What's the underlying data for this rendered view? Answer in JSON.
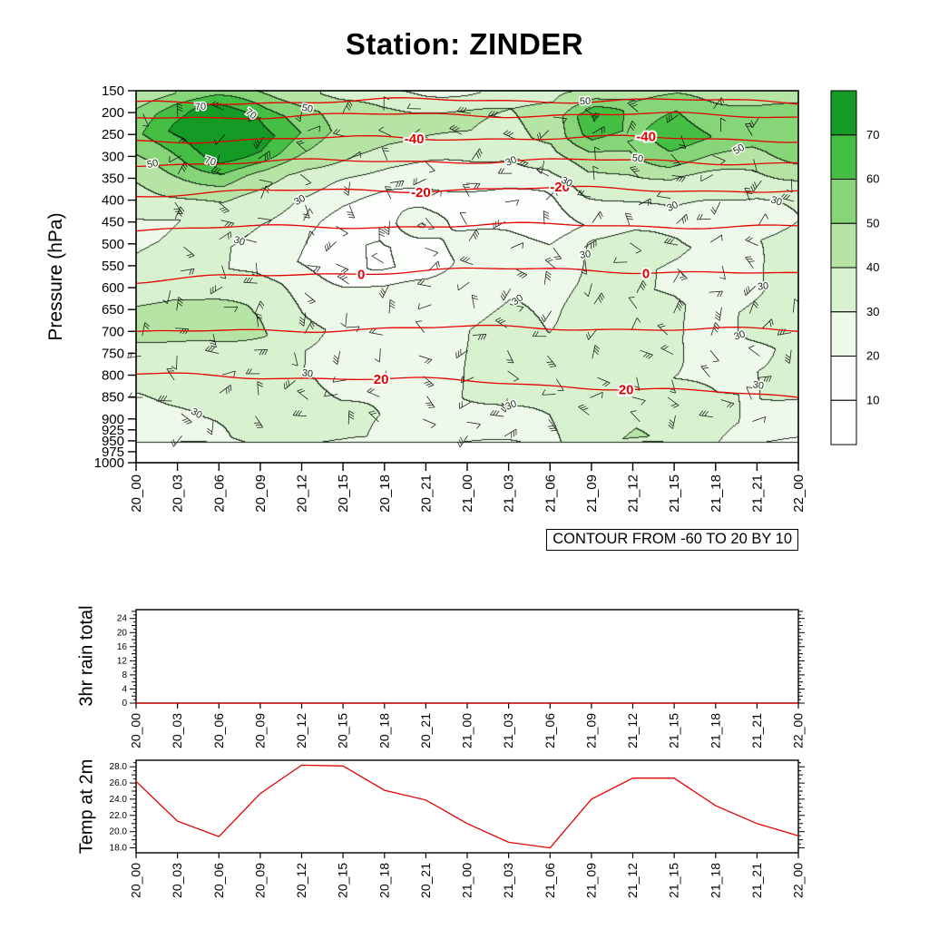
{
  "chart_data": [
    {
      "type": "heatmap",
      "title": "Station: ZINDER",
      "ylabel": "Pressure (hPa)",
      "xlabel": "",
      "ylim": [
        1000,
        150
      ],
      "y_ticks": [
        150,
        200,
        250,
        300,
        350,
        400,
        450,
        500,
        550,
        600,
        650,
        700,
        750,
        800,
        850,
        900,
        925,
        950,
        975,
        1000
      ],
      "x_ticklabels": [
        "20_00",
        "20_03",
        "20_06",
        "20_09",
        "20_12",
        "20_15",
        "20_18",
        "20_21",
        "21_00",
        "21_03",
        "21_06",
        "21_09",
        "21_12",
        "21_15",
        "21_18",
        "21_21",
        "22_00"
      ],
      "contour_note": "CONTOUR FROM -60 TO 20 BY 10",
      "colorbar_levels": [
        10,
        20,
        30,
        40,
        50,
        60,
        70
      ],
      "colorbar_colors": [
        "#ffffff",
        "#fcfefc",
        "#eef9ea",
        "#d8f1cf",
        "#b6e4a5",
        "#86d578",
        "#44bf44",
        "#149b26"
      ],
      "humidity_label_levels": [
        30,
        50,
        70
      ],
      "pressure_levels": [
        150,
        200,
        250,
        300,
        350,
        400,
        450,
        500,
        550,
        600,
        650,
        700,
        750,
        800,
        850,
        900,
        950,
        1000
      ],
      "humidity_values": [
        [
          44,
          50,
          52,
          48,
          45,
          36,
          29,
          28,
          29,
          32,
          36,
          45,
          44,
          46,
          45,
          44,
          45
        ],
        [
          52,
          66,
          75,
          70,
          55,
          45,
          42,
          42,
          41,
          40,
          44,
          72,
          55,
          60,
          56,
          54,
          52
        ],
        [
          56,
          72,
          82,
          76,
          60,
          46,
          42,
          40,
          40,
          38,
          42,
          66,
          58,
          66,
          60,
          56,
          58
        ],
        [
          50,
          60,
          73,
          68,
          50,
          40,
          35,
          33,
          32,
          30,
          36,
          50,
          48,
          56,
          50,
          48,
          52
        ],
        [
          42,
          48,
          56,
          46,
          35,
          28,
          26,
          25,
          24,
          24,
          28,
          38,
          36,
          41,
          38,
          36,
          40
        ],
        [
          35,
          38,
          43,
          36,
          28,
          22,
          18,
          16,
          15,
          15,
          18,
          28,
          30,
          32,
          30,
          28,
          32
        ],
        [
          28,
          30,
          33,
          30,
          24,
          16,
          13,
          32,
          14,
          10,
          13,
          21,
          26,
          28,
          25,
          25,
          30
        ],
        [
          29,
          31,
          31,
          28,
          22,
          12,
          9,
          13,
          26,
          29,
          21,
          31,
          33,
          31,
          28,
          30,
          33
        ],
        [
          31,
          33,
          31,
          28,
          20,
          12,
          9,
          12,
          23,
          26,
          21,
          33,
          31,
          29,
          26,
          29,
          36
        ],
        [
          33,
          36,
          36,
          33,
          28,
          22,
          20,
          22,
          26,
          29,
          26,
          33,
          31,
          29,
          26,
          29,
          33
        ],
        [
          41,
          46,
          43,
          39,
          30,
          25,
          22,
          25,
          28,
          31,
          28,
          36,
          33,
          31,
          28,
          31,
          33
        ],
        [
          43,
          46,
          45,
          41,
          32,
          28,
          25,
          28,
          30,
          33,
          30,
          34,
          33,
          31,
          28,
          31,
          33
        ],
        [
          36,
          37,
          36,
          33,
          30,
          28,
          26,
          28,
          30,
          32,
          30,
          33,
          32,
          31,
          28,
          29,
          31
        ],
        [
          32,
          33,
          32,
          31,
          30,
          29,
          28,
          29,
          30,
          31,
          30,
          32,
          31,
          30,
          29,
          30,
          31
        ],
        [
          30,
          31,
          32,
          32,
          31,
          30,
          29,
          30,
          30,
          31,
          32,
          35,
          34,
          32,
          30,
          30,
          30
        ],
        [
          26,
          28,
          31,
          34,
          36,
          34,
          30,
          28,
          27,
          28,
          30,
          37,
          39,
          36,
          32,
          28,
          26
        ],
        [
          21,
          24,
          28,
          33,
          37,
          34,
          28,
          24,
          22,
          24,
          28,
          38,
          41,
          38,
          30,
          24,
          21
        ],
        [
          0,
          0,
          0,
          0,
          0,
          0,
          0,
          0,
          0,
          0,
          0,
          0,
          0,
          0,
          0,
          0,
          0
        ]
      ],
      "temp_contours": [
        {
          "level": -60,
          "p": [
            180,
            172,
            176
          ],
          "labels": []
        },
        {
          "level": -50,
          "p": [
            212,
            205,
            208
          ],
          "labels": []
        },
        {
          "level": -40,
          "p": [
            265,
            258,
            262
          ],
          "labels": [
            0.42,
            0.77
          ]
        },
        {
          "level": -30,
          "p": [
            318,
            310,
            315
          ],
          "labels": []
        },
        {
          "level": -20,
          "p": [
            388,
            375,
            380
          ],
          "labels": [
            0.43,
            0.64
          ]
        },
        {
          "level": -10,
          "p": [
            468,
            458,
            462
          ],
          "labels": []
        },
        {
          "level": 0,
          "p": [
            588,
            560,
            572
          ],
          "labels": [
            0.34,
            0.77
          ]
        },
        {
          "level": 10,
          "p": [
            705,
            692,
            700
          ],
          "labels": []
        },
        {
          "level": 20,
          "p": [
            800,
            815,
            852
          ],
          "labels": [
            0.37,
            0.74
          ]
        }
      ],
      "wind_barbs": true
    },
    {
      "type": "line",
      "ylabel": "3hr rain total",
      "x_ticklabels": [
        "20_00",
        "20_03",
        "20_06",
        "20_09",
        "20_12",
        "20_15",
        "20_18",
        "20_21",
        "21_00",
        "21_03",
        "21_06",
        "21_09",
        "21_12",
        "21_15",
        "21_18",
        "21_21",
        "22_00"
      ],
      "y_ticks": [
        0,
        4,
        8,
        12,
        16,
        20,
        24
      ],
      "ylim": [
        0,
        26.5
      ],
      "values": [
        0,
        0,
        0,
        0,
        0,
        0,
        0,
        0,
        0,
        0,
        0,
        0,
        0,
        0,
        0,
        0,
        0
      ],
      "color": "#e60000"
    },
    {
      "type": "line",
      "ylabel": "Temp at 2m",
      "x_ticklabels": [
        "20_00",
        "20_03",
        "20_06",
        "20_09",
        "20_12",
        "20_15",
        "20_18",
        "20_21",
        "21_00",
        "21_03",
        "21_06",
        "21_09",
        "21_12",
        "21_15",
        "21_18",
        "21_21",
        "22_00"
      ],
      "y_ticks": [
        18,
        20,
        22,
        24,
        26,
        28
      ],
      "ylim": [
        17.4,
        28.8
      ],
      "values": [
        26.2,
        21.3,
        19.4,
        24.7,
        28.2,
        28.1,
        25.1,
        23.9,
        21.0,
        18.7,
        18.0,
        24.0,
        26.6,
        26.6,
        23.2,
        21.0,
        19.5
      ],
      "color": "#e60000"
    }
  ]
}
